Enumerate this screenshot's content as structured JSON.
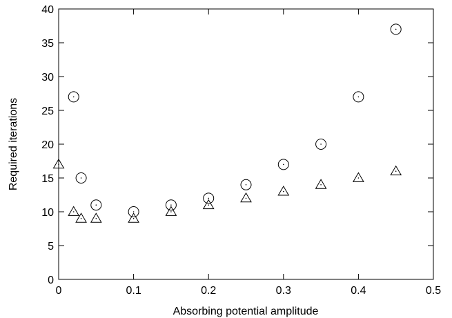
{
  "chart_data": {
    "type": "scatter",
    "title": "",
    "xlabel": "Absorbing potential amplitude",
    "ylabel": "Required iterations",
    "xlim": [
      0,
      0.5
    ],
    "ylim": [
      0,
      40
    ],
    "xticks": [
      "0",
      "0.1",
      "0.2",
      "0.3",
      "0.4",
      "0.5"
    ],
    "yticks": [
      "0",
      "5",
      "10",
      "15",
      "20",
      "25",
      "30",
      "35",
      "40"
    ],
    "grid": false,
    "legend": "none",
    "series": [
      {
        "marker": "circle",
        "x": [
          0.02,
          0.03,
          0.05,
          0.1,
          0.15,
          0.2,
          0.25,
          0.3,
          0.35,
          0.4,
          0.45
        ],
        "y": [
          27,
          15,
          11,
          10,
          11,
          12,
          14,
          17,
          20,
          27,
          37
        ]
      },
      {
        "marker": "triangle",
        "x": [
          0,
          0.02,
          0.03,
          0.05,
          0.1,
          0.15,
          0.2,
          0.25,
          0.3,
          0.35,
          0.4,
          0.45
        ],
        "y": [
          17,
          10,
          9,
          9,
          9,
          10,
          11,
          12,
          13,
          14,
          15,
          16
        ]
      }
    ]
  }
}
